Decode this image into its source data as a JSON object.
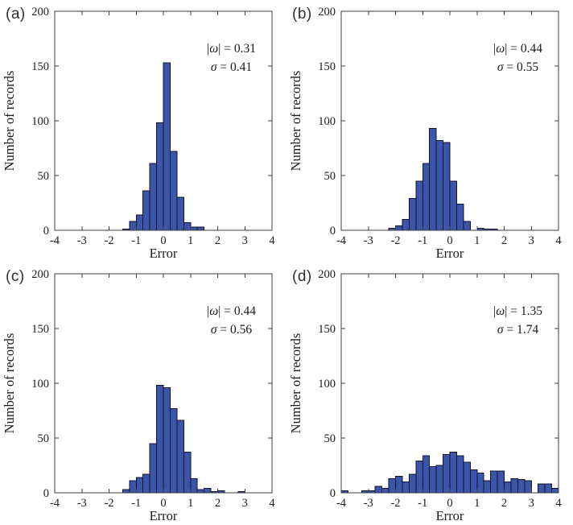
{
  "figure": {
    "background": "#ffffff",
    "bar_fill": "#3a55a9",
    "bar_stroke": "#141428",
    "axis_color": "#3d3d3d",
    "text_color": "#1c1c1c",
    "xlabel": "Error",
    "ylabel": "Number of records",
    "xlim": [
      -4,
      4
    ],
    "ylim": [
      0,
      200
    ],
    "x_ticks": [
      -4,
      -3,
      -2,
      -1,
      0,
      1,
      2,
      3,
      4
    ],
    "y_ticks": [
      0,
      50,
      100,
      150,
      200
    ]
  },
  "symbols": {
    "bar": "|",
    "omega": "ω",
    "sigma": "σ",
    "eq": " = "
  },
  "chart_data": [
    {
      "type": "bar",
      "panel_label": "(a)",
      "title": "",
      "xlabel": "Error",
      "ylabel": "Number of records",
      "xlim": [
        -4,
        4
      ],
      "ylim": [
        0,
        200
      ],
      "grid": false,
      "bin_width": 0.25,
      "bin_start": -1.5,
      "counts": [
        1,
        8,
        14,
        36,
        61,
        98,
        153,
        72,
        30,
        7,
        3,
        3
      ],
      "stats": {
        "omega_abs": "0.31",
        "sigma": "0.41"
      }
    },
    {
      "type": "bar",
      "panel_label": "(b)",
      "title": "",
      "xlabel": "Error",
      "ylabel": "Number of records",
      "xlim": [
        -4,
        4
      ],
      "ylim": [
        0,
        200
      ],
      "grid": false,
      "bin_width": 0.25,
      "bin_start": -2.25,
      "counts": [
        2,
        4,
        10,
        29,
        45,
        61,
        93,
        82,
        80,
        45,
        24,
        8,
        0,
        2,
        1,
        1
      ],
      "stats": {
        "omega_abs": "0.44",
        "sigma": "0.55"
      }
    },
    {
      "type": "bar",
      "panel_label": "(c)",
      "title": "",
      "xlabel": "Error",
      "ylabel": "Number of records",
      "xlim": [
        -4,
        4
      ],
      "ylim": [
        0,
        200
      ],
      "grid": false,
      "bin_width": 0.25,
      "bin_start": -1.5,
      "counts": [
        3,
        11,
        14,
        17,
        45,
        98,
        96,
        77,
        66,
        37,
        13,
        3,
        4,
        1,
        2,
        0,
        0,
        1
      ],
      "stats": {
        "omega_abs": "0.44",
        "sigma": "0.56"
      }
    },
    {
      "type": "bar",
      "panel_label": "(d)",
      "title": "",
      "xlabel": "Error",
      "ylabel": "Number of records",
      "xlim": [
        -4,
        4
      ],
      "ylim": [
        0,
        200
      ],
      "grid": false,
      "bin_width": 0.25,
      "bin_start": -4,
      "counts": [
        2,
        0,
        0,
        2,
        2,
        6,
        4,
        13,
        15,
        10,
        17,
        29,
        34,
        24,
        25,
        35,
        37,
        34,
        28,
        21,
        18,
        11,
        20,
        20,
        10,
        13,
        12,
        11,
        0,
        8,
        8,
        4
      ],
      "stats": {
        "omega_abs": "1.35",
        "sigma": "1.74"
      }
    }
  ]
}
